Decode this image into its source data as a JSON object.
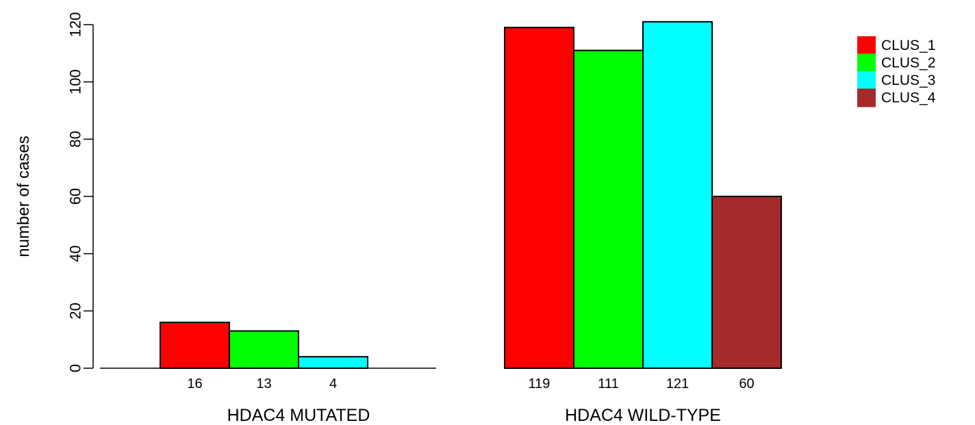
{
  "chart_data": {
    "type": "bar",
    "title": "",
    "xlabel": "",
    "ylabel": "number of cases",
    "ylim": [
      0,
      120
    ],
    "yticks": [
      0,
      20,
      40,
      60,
      80,
      100,
      120
    ],
    "grid": false,
    "legend_position": "top-right",
    "categories": [
      "HDAC4 MUTATED",
      "HDAC4 WILD-TYPE"
    ],
    "series": [
      {
        "name": "CLUS_1",
        "color": "#ff0000",
        "values": [
          16,
          119
        ]
      },
      {
        "name": "CLUS_2",
        "color": "#00ff00",
        "values": [
          13,
          111
        ]
      },
      {
        "name": "CLUS_3",
        "color": "#00ffff",
        "values": [
          4,
          121
        ]
      },
      {
        "name": "CLUS_4",
        "color": "#a52a2a",
        "values": [
          0,
          60
        ]
      }
    ],
    "bar_labels": [
      [
        "16",
        "13",
        "4",
        ""
      ],
      [
        "119",
        "111",
        "121",
        "60"
      ]
    ]
  }
}
